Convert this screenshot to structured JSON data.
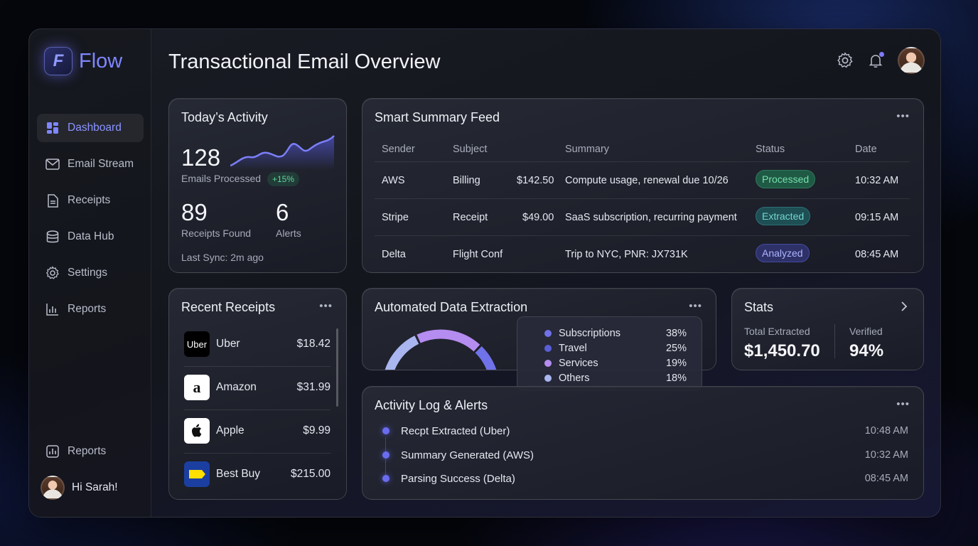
{
  "app": {
    "brand": "Flow",
    "logo_letter": "F"
  },
  "sidebar": {
    "items": [
      {
        "label": "Dashboard",
        "icon": "grid-icon",
        "active": true
      },
      {
        "label": "Email Stream",
        "icon": "mail-icon"
      },
      {
        "label": "Receipts",
        "icon": "document-icon"
      },
      {
        "label": "Data Hub",
        "icon": "database-icon"
      },
      {
        "label": "Settings",
        "icon": "gear-icon"
      },
      {
        "label": "Reports",
        "icon": "bar-chart-icon"
      }
    ],
    "bottom_item": {
      "label": "Reports",
      "icon": "chart-box-icon"
    },
    "user_greeting": "Hi Sarah!"
  },
  "header": {
    "title": "Transactional Email Overview"
  },
  "activity": {
    "title": "Today’s Activity",
    "emails_processed": "128",
    "emails_label": "Emails Processed",
    "change": "+15%",
    "receipts_found": "89",
    "receipts_label": "Receipts Found",
    "alerts": "6",
    "alerts_label": "Alerts",
    "last_sync": "Last Sync: 2m ago"
  },
  "feed": {
    "title": "Smart Summary Feed",
    "columns": [
      "Sender",
      "Subject",
      "Summary",
      "Status",
      "Date"
    ],
    "rows": [
      {
        "sender": "AWS",
        "subject": "Billing",
        "amount": "$142.50",
        "summary": "Compute usage, renewal due 10/26",
        "status": "Processed",
        "date": "10:32 AM"
      },
      {
        "sender": "Stripe",
        "subject": "Receipt",
        "amount": "$49.00",
        "summary": "SaaS subscription, recurring payment",
        "status": "Extracted",
        "date": "09:15 AM"
      },
      {
        "sender": "Delta",
        "subject": "Flight Conf",
        "amount": "",
        "summary": "Trip to NYC, PNR: JX731K",
        "status": "Analyzed",
        "date": "08:45 AM"
      }
    ]
  },
  "receipts": {
    "title": "Recent Receipts",
    "items": [
      {
        "name": "Uber",
        "amount": "$18.42",
        "logo": "Uber"
      },
      {
        "name": "Amazon",
        "amount": "$31.99",
        "logo": "a"
      },
      {
        "name": "Apple",
        "amount": "$9.99",
        "logo": ""
      },
      {
        "name": "Best Buy",
        "amount": "$215.00",
        "logo": ""
      }
    ]
  },
  "extraction": {
    "title": "Automated Data Extraction",
    "legend": [
      {
        "name": "Subscriptions",
        "pct": "38%",
        "value": 38,
        "color": "#6f72e8"
      },
      {
        "name": "Travel",
        "pct": "25%",
        "value": 25,
        "color": "#5a5fd8"
      },
      {
        "name": "Services",
        "pct": "19%",
        "value": 19,
        "color": "#b58cf0"
      },
      {
        "name": "Others",
        "pct": "18%",
        "value": 18,
        "color": "#a9b6f0"
      }
    ]
  },
  "stats": {
    "title": "Stats",
    "total_label": "Total Extracted",
    "total_value": "$1,450.70",
    "verified_label": "Verified",
    "verified_value": "94%"
  },
  "log": {
    "title": "Activity Log & Alerts",
    "items": [
      {
        "text": "Recpt Extracted (Uber)",
        "time": "10:48 AM"
      },
      {
        "text": "Summary Generated (AWS)",
        "time": "10:32 AM"
      },
      {
        "text": "Parsing Success (Delta)",
        "time": "08:45 AM"
      }
    ]
  },
  "colors": {
    "accent": "#7f86ff",
    "processed_bg": "#1f5a45",
    "extracted_bg": "#1e4f55",
    "analyzed_bg": "#2e3168"
  }
}
